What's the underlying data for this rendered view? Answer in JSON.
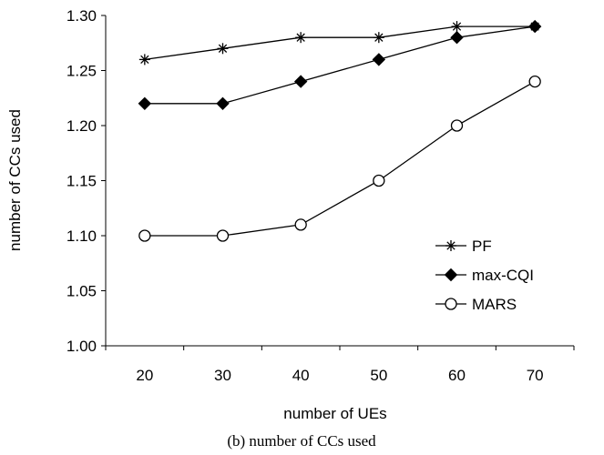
{
  "chart_data": {
    "type": "line",
    "x": [
      20,
      30,
      40,
      50,
      60,
      70
    ],
    "categories": [
      "20",
      "30",
      "40",
      "50",
      "60",
      "70"
    ],
    "series": [
      {
        "name": "PF",
        "marker": "asterisk",
        "values": [
          1.26,
          1.27,
          1.28,
          1.28,
          1.29,
          1.29
        ]
      },
      {
        "name": "max-CQI",
        "marker": "filled-diamond",
        "values": [
          1.22,
          1.22,
          1.24,
          1.26,
          1.28,
          1.29
        ]
      },
      {
        "name": "MARS",
        "marker": "open-circle",
        "values": [
          1.1,
          1.1,
          1.11,
          1.15,
          1.2,
          1.24
        ]
      }
    ],
    "xlabel": "number of UEs",
    "ylabel": "number of CCs used",
    "ylim": [
      1.0,
      1.3
    ],
    "yticks": [
      "1.00",
      "1.05",
      "1.10",
      "1.15",
      "1.20",
      "1.25",
      "1.30"
    ],
    "grid": false,
    "legend": "bottom-right",
    "line_color": "#000000"
  },
  "caption": "(b) number of CCs used"
}
